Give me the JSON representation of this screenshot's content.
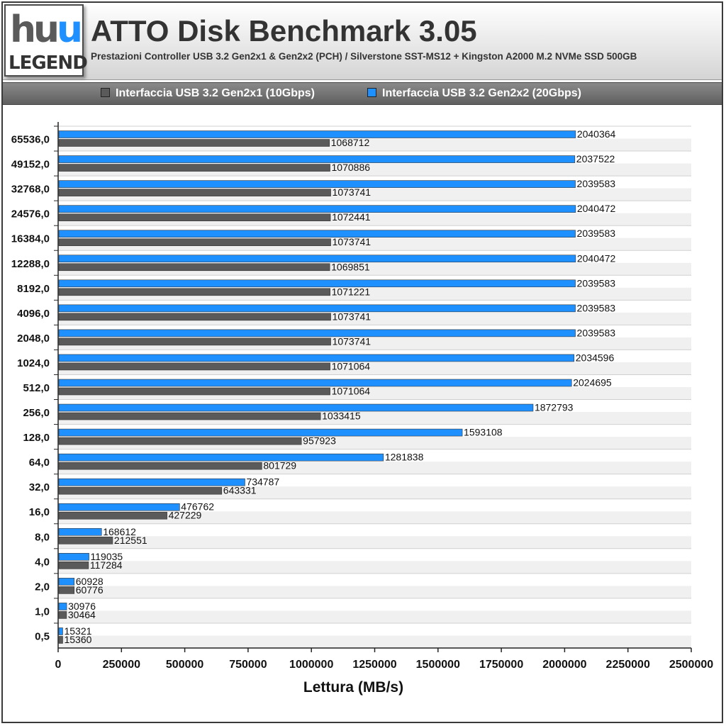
{
  "header": {
    "logo_text_left": "hu",
    "logo_text_right": "u",
    "logo_legend": "LEGEND",
    "title": "ATTO Disk Benchmark 3.05",
    "subtitle": "Prestazioni Controller USB 3.2 Gen2x1 & Gen2x2 (PCH) / Silverstone SST-MS12 + Kingston A2000 M.2 NVMe SSD 500GB"
  },
  "legend": {
    "items": [
      {
        "label": "Interfaccia USB 3.2 Gen2x1 (10Gbps)",
        "color": "#5a5a5a"
      },
      {
        "label": "Interfaccia USB 3.2 Gen2x2 (20Gbps)",
        "color": "#1e90ff"
      }
    ]
  },
  "chart_data": {
    "type": "bar",
    "orientation": "horizontal",
    "xlabel": "Lettura (MB/s)",
    "ylabel": "",
    "xlim": [
      0,
      2500000
    ],
    "xticks": [
      "0",
      "250000",
      "500000",
      "750000",
      "1000000",
      "1250000",
      "1500000",
      "1750000",
      "2000000",
      "2250000",
      "2500000"
    ],
    "categories": [
      "65536,0",
      "49152,0",
      "32768,0",
      "24576,0",
      "16384,0",
      "12288,0",
      "8192,0",
      "4096,0",
      "2048,0",
      "1024,0",
      "512,0",
      "256,0",
      "128,0",
      "64,0",
      "32,0",
      "16,0",
      "8,0",
      "4,0",
      "2,0",
      "1,0",
      "0,5"
    ],
    "series": [
      {
        "name": "Interfaccia USB 3.2 Gen2x2 (20Gbps)",
        "color": "#1e90ff",
        "values": [
          2040364,
          2037522,
          2039583,
          2040472,
          2039583,
          2040472,
          2039583,
          2039583,
          2039583,
          2034596,
          2024695,
          1872793,
          1593108,
          1281838,
          734787,
          476762,
          168612,
          119035,
          60928,
          30976,
          15321
        ]
      },
      {
        "name": "Interfaccia USB 3.2 Gen2x1 (10Gbps)",
        "color": "#5a5a5a",
        "values": [
          1068712,
          1070886,
          1073741,
          1072441,
          1073741,
          1069851,
          1071221,
          1073741,
          1073741,
          1071064,
          1071064,
          1033415,
          957923,
          801729,
          643331,
          427229,
          212551,
          117284,
          60776,
          30464,
          15360
        ]
      }
    ],
    "grid": true,
    "legend_position": "top"
  }
}
